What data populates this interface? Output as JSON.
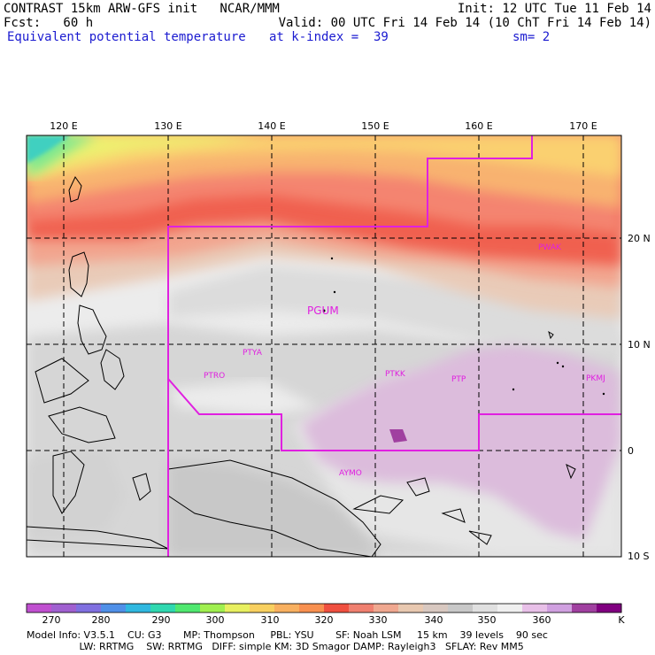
{
  "header": {
    "line1_left": "CONTRAST 15km ARW-GFS init   NCAR/MMM",
    "line1_right": "Init: 12 UTC Tue 11 Feb 14",
    "line2_left": "Fcst:   60 h",
    "line2_right": "Valid: 00 UTC Fri 14 Feb 14 (10 ChT Fri 14 Feb 14)",
    "field_name": "Equivalent potential temperature",
    "level": "at k-index =  39",
    "smoothing": "sm= 2"
  },
  "map": {
    "lon_labels": [
      "120 E",
      "130 E",
      "140 E",
      "150 E",
      "160 E",
      "170 E"
    ],
    "lat_labels": [
      "20 N",
      "10 N",
      "0",
      "10 S"
    ],
    "stations": [
      {
        "id": "PGUM",
        "big": true
      },
      {
        "id": "PWAK",
        "big": false
      },
      {
        "id": "PTYA",
        "big": false
      },
      {
        "id": "PTRO",
        "big": false
      },
      {
        "id": "PTKK",
        "big": false
      },
      {
        "id": "PTPN",
        "display": "PTP",
        "big": false
      },
      {
        "id": "PKMJ",
        "big": false
      },
      {
        "id": "AYMO",
        "big": false
      }
    ]
  },
  "colorbar": {
    "labels": [
      "270",
      "280",
      "290",
      "300",
      "310",
      "320",
      "330",
      "340",
      "350",
      "360",
      "K"
    ],
    "colors": [
      "#c050d0",
      "#a060d0",
      "#8070e0",
      "#5090e8",
      "#30b8e0",
      "#30d8b0",
      "#50e870",
      "#a0f050",
      "#e8f060",
      "#f8d060",
      "#f8b060",
      "#f89050",
      "#f05040",
      "#f08070",
      "#f0a890",
      "#e8c8b0",
      "#d8c8c0",
      "#c8c8c8",
      "#e0e0e0",
      "#f0f0f0",
      "#e8c0e8",
      "#d0a0e0",
      "#a040a0",
      "#800080"
    ]
  },
  "footer": {
    "line1": "Model Info: V3.5.1    CU: G3       MP: Thompson     PBL: YSU       SF: Noah LSM     15 km    39 levels    90 sec",
    "line2": "                 LW: RRTMG    SW: RRTMG   DIFF: simple KM: 3D Smagor DAMP: Rayleigh3   SFLAY: Rev MM5"
  }
}
